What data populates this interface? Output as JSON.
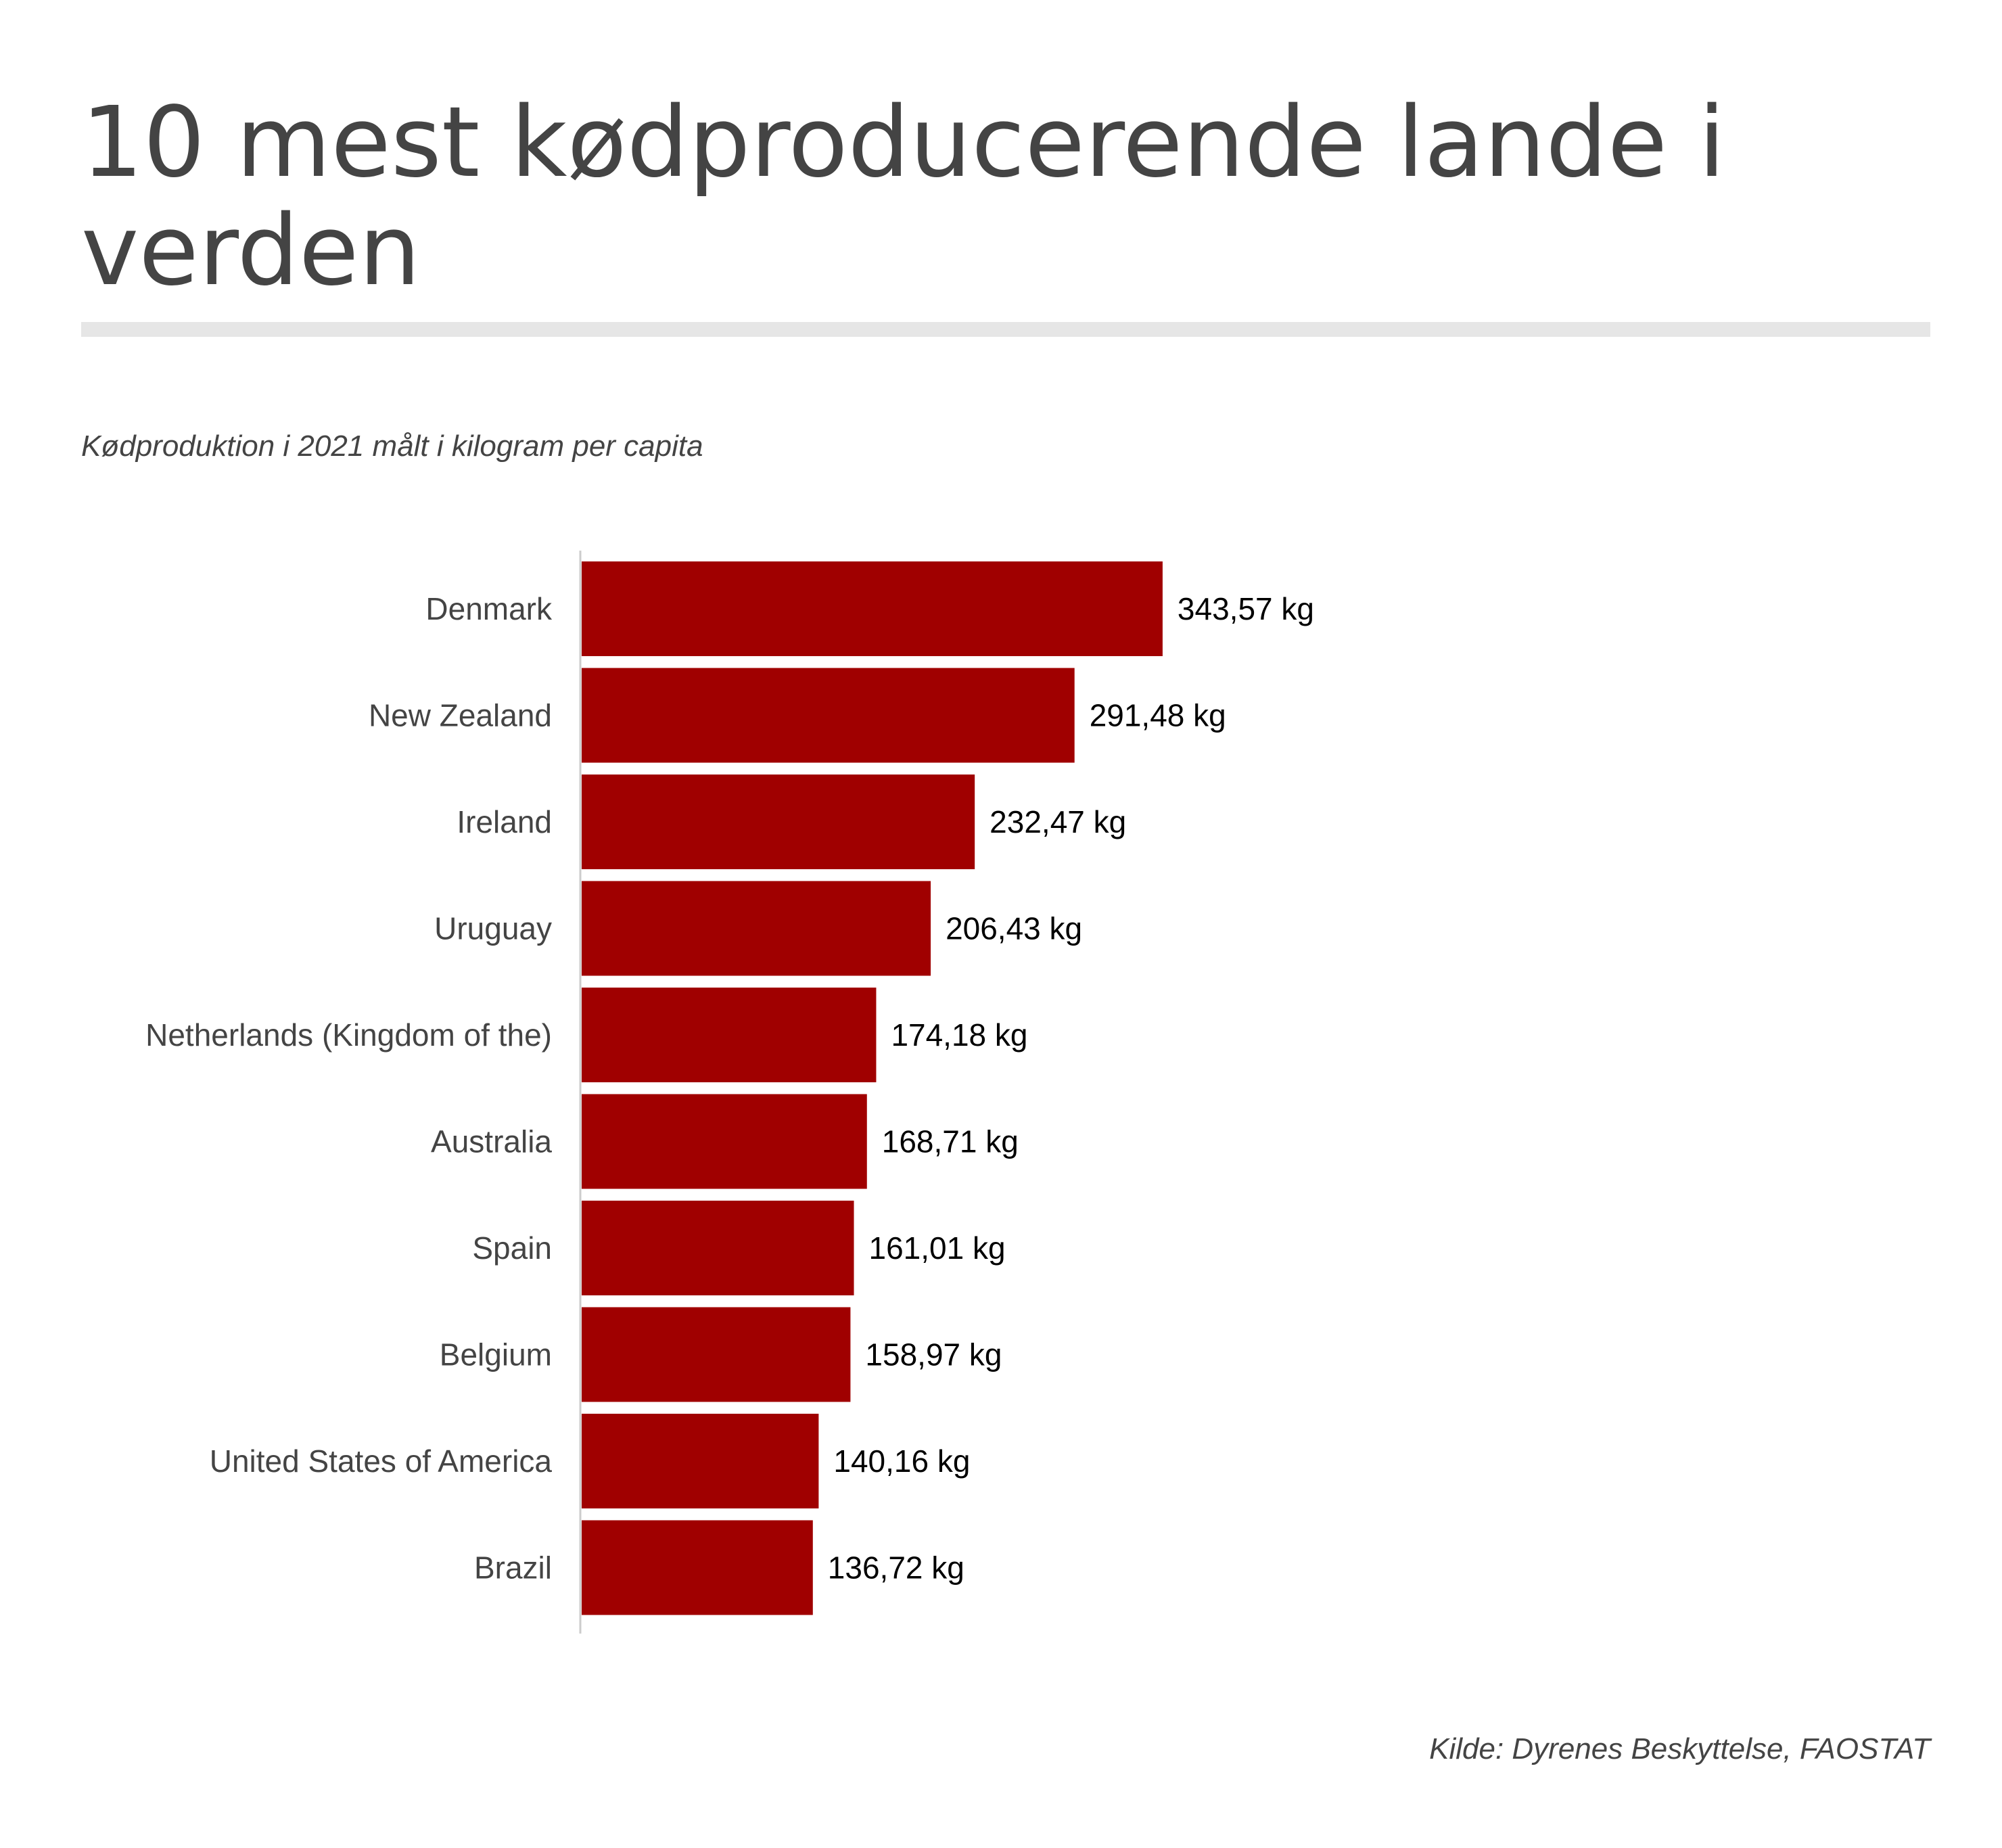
{
  "chart_data": {
    "type": "bar",
    "orientation": "horizontal",
    "title": "10 mest kødproducerende lande i verden",
    "subtitle": "Kødproduktion i 2021 målt i kilogram per capita",
    "source": "Kilde: Dyrenes Beskyttelse, FAOSTAT",
    "categories": [
      "Denmark",
      "New Zealand",
      "Ireland",
      "Uruguay",
      "Netherlands (Kingdom of the)",
      "Australia",
      "Spain",
      "Belgium",
      "United States of America",
      "Brazil"
    ],
    "values": [
      343.57,
      291.48,
      232.47,
      206.43,
      174.18,
      168.71,
      161.01,
      158.97,
      140.16,
      136.72
    ],
    "value_labels": [
      "343,57 kg",
      "291,48 kg",
      "232,47 kg",
      "206,43 kg",
      "174,18 kg",
      "168,71 kg",
      "161,01 kg",
      "158,97 kg",
      "140,16 kg",
      "136,72 kg"
    ],
    "unit": "kg",
    "bar_color": "#a00000",
    "grid": false,
    "legend": "none"
  }
}
